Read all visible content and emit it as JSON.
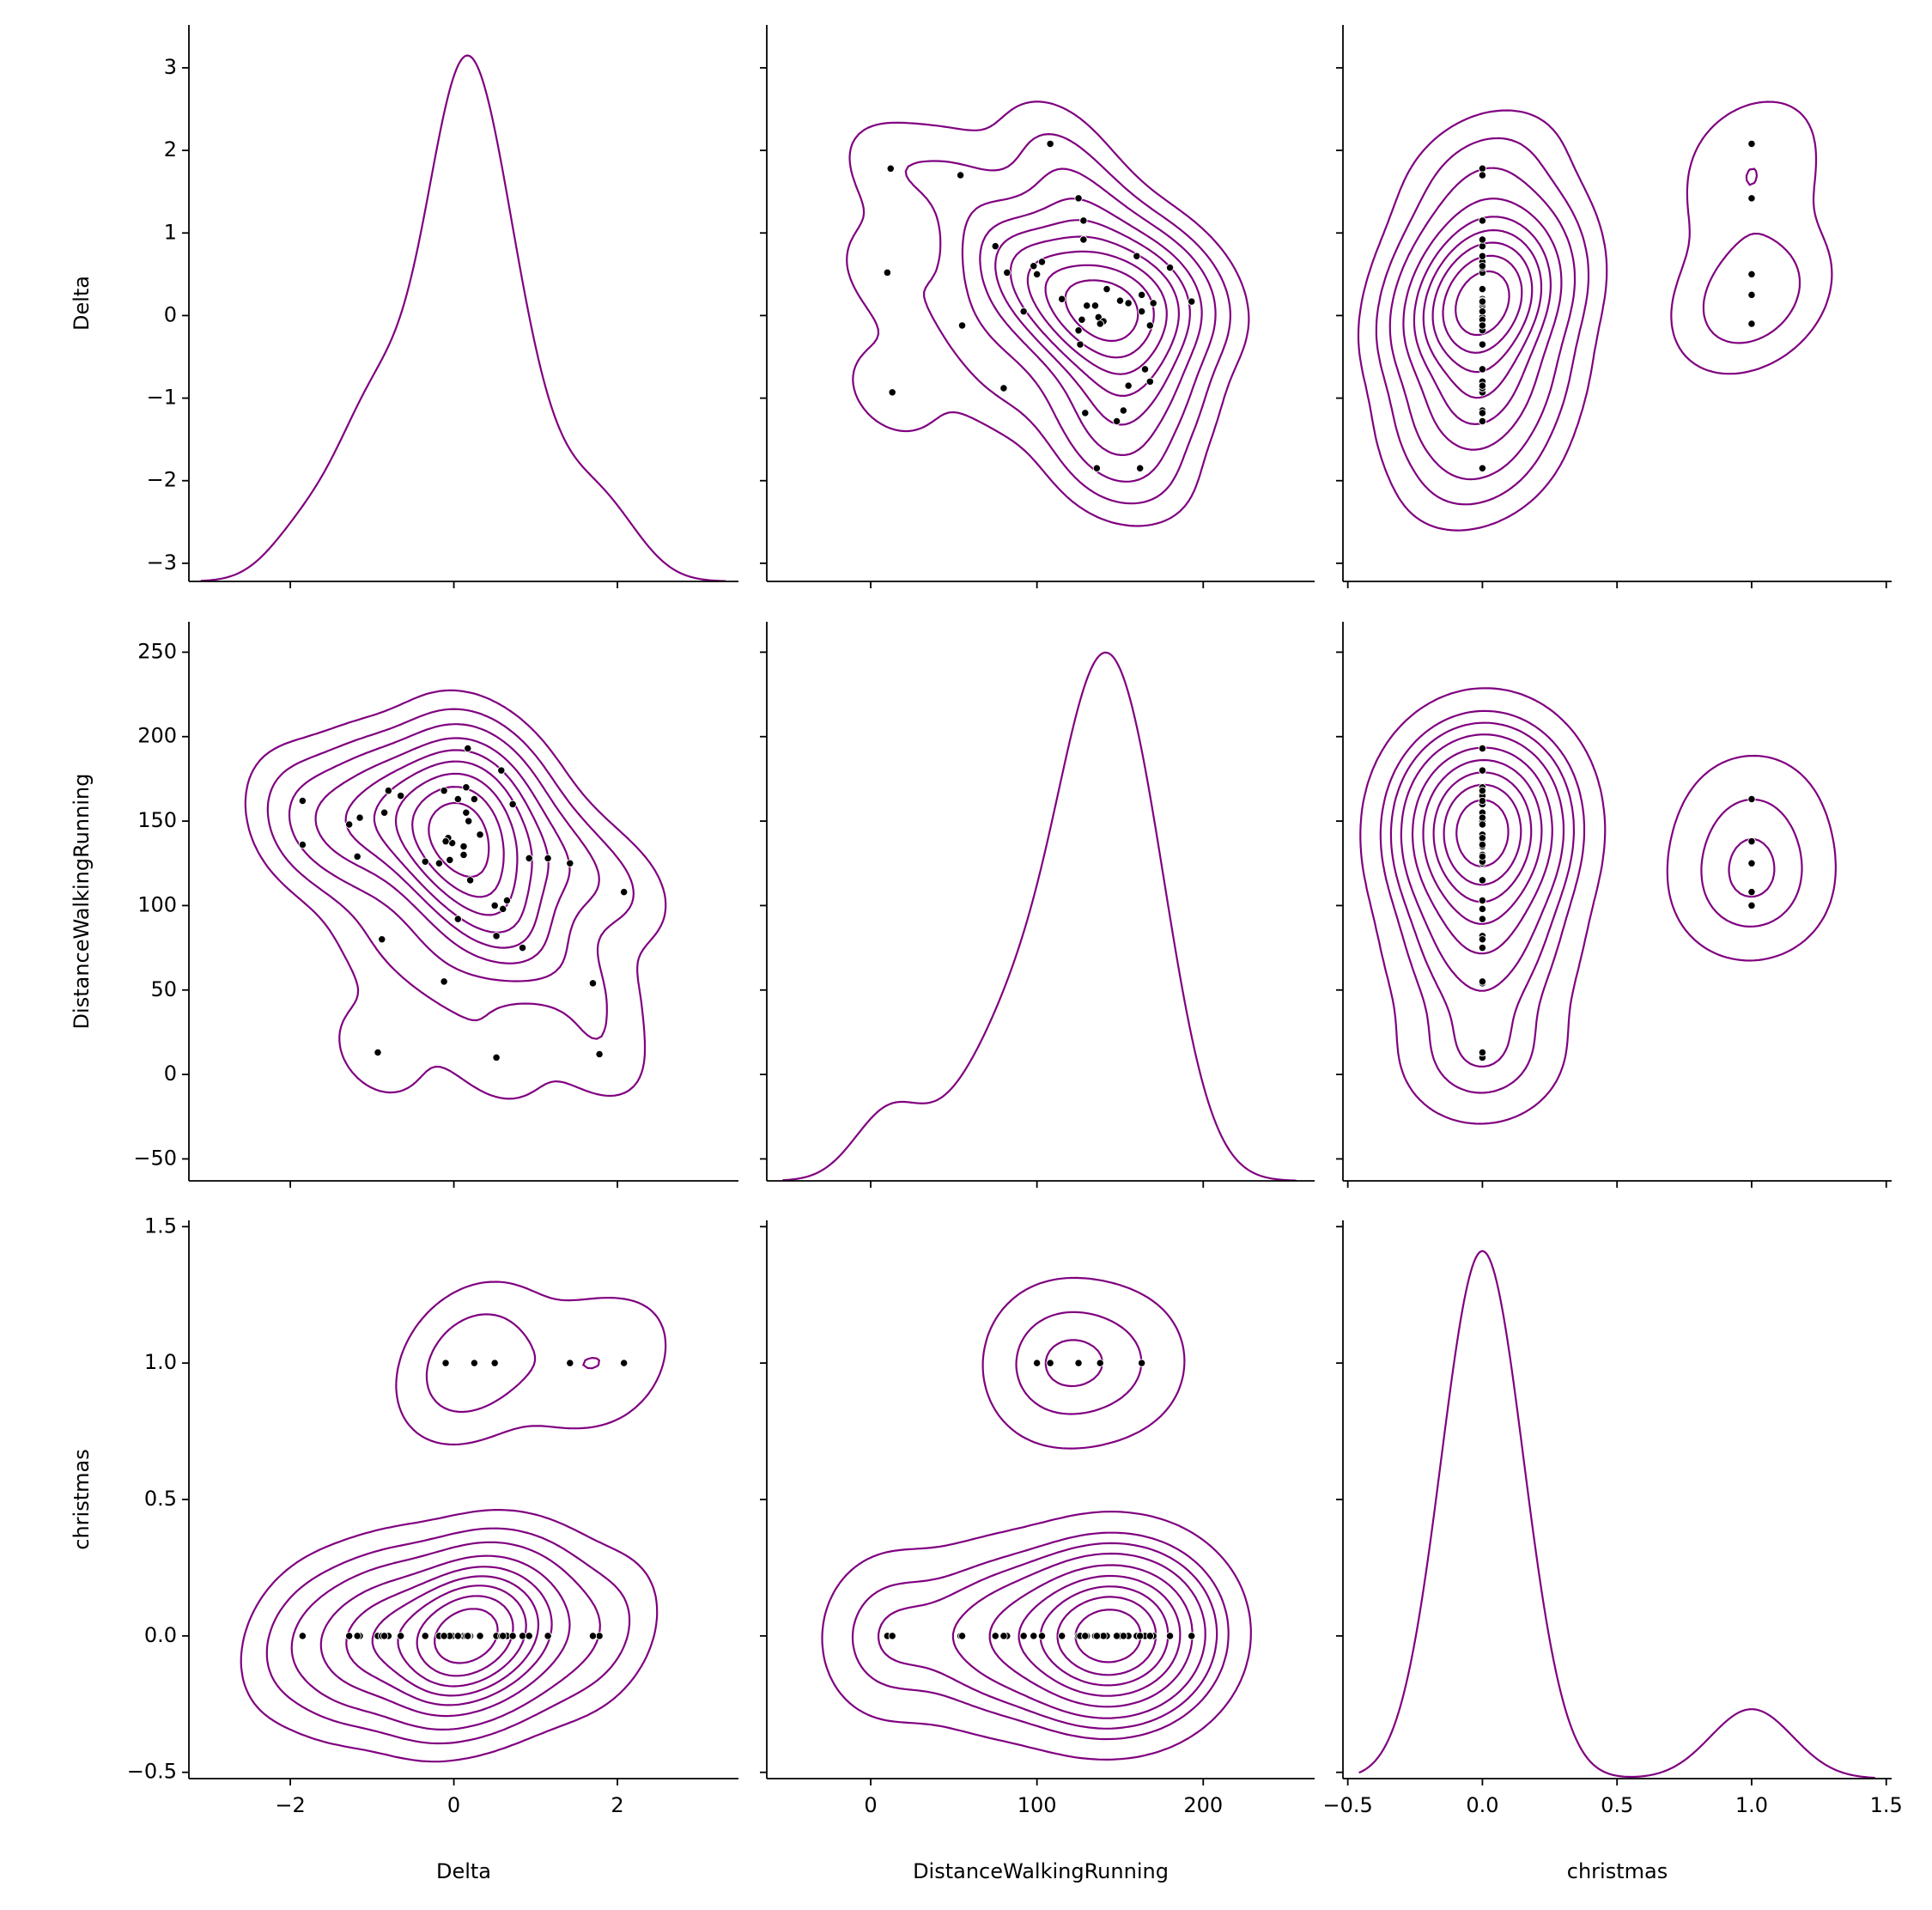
{
  "chart_data": {
    "type": "pairplot",
    "line_color": "#800080",
    "point_color": "#000000",
    "variables": [
      {
        "name": "Delta",
        "xlim": [
          -3.24,
          3.48
        ],
        "ylim": [
          -3.22,
          3.52
        ],
        "xticks": [
          {
            "value": -2,
            "label": "−2"
          },
          0,
          2
        ],
        "yticks": [
          {
            "value": -3,
            "label": "−3"
          },
          {
            "value": -2,
            "label": "−2"
          },
          {
            "value": -1,
            "label": "−1"
          },
          0,
          1,
          2,
          3
        ],
        "values": [
          1.78,
          0.52,
          -0.93,
          1.7,
          -0.12,
          2.08,
          1.42,
          0.84,
          0.52,
          0.5,
          0.05,
          -0.88,
          0.65,
          1.15,
          0.2,
          0.92,
          0.12,
          0.12,
          -0.02,
          0.32,
          -0.07,
          -0.05,
          -0.18,
          -0.35,
          0.18,
          0.15,
          0.72,
          0.25,
          0.05,
          0.15,
          -0.12,
          0.58,
          0.17,
          -0.65,
          -0.8,
          -0.85,
          -1.15,
          -1.28,
          -1.18,
          -1.85,
          -1.85,
          -0.1,
          0.6
        ]
      },
      {
        "name": "DistanceWalkingRunning",
        "xlim": [
          -62.5,
          267
        ],
        "ylim": [
          -63,
          268
        ],
        "xticks": [
          0,
          100,
          200
        ],
        "yticks": [
          {
            "value": -50,
            "label": "−50"
          },
          0,
          50,
          100,
          150,
          200,
          250
        ],
        "values": [
          12,
          10,
          13,
          54,
          55,
          108,
          125,
          75,
          82,
          100,
          92,
          80,
          103,
          128,
          115,
          128,
          130,
          135,
          137,
          142,
          140,
          127,
          125,
          126,
          150,
          155,
          160,
          163,
          163,
          170,
          168,
          180,
          193,
          165,
          168,
          155,
          152,
          148,
          129,
          136,
          162,
          138,
          98
        ]
      },
      {
        "name": "christmas",
        "xlim": [
          -0.518,
          1.52
        ],
        "ylim": [
          -0.523,
          1.523
        ],
        "xticks": [
          {
            "value": -0.5,
            "label": "−0.5"
          },
          {
            "value": 0,
            "label": "0.0"
          },
          0.5,
          {
            "value": 1,
            "label": "1.0"
          },
          1.5
        ],
        "yticks": [
          {
            "value": -0.5,
            "label": "−0.5"
          },
          {
            "value": 0,
            "label": "0.0"
          },
          0.5,
          {
            "value": 1,
            "label": "1.0"
          },
          1.5
        ],
        "values": [
          0,
          0,
          0,
          0,
          0,
          1,
          1,
          0,
          0,
          1,
          0,
          0,
          0,
          0,
          0,
          0,
          0,
          0,
          0,
          0,
          0,
          0,
          0,
          0,
          0,
          0,
          0,
          1,
          0,
          0,
          0,
          0,
          0,
          0,
          0,
          0,
          0,
          0,
          0,
          0,
          0,
          1,
          0
        ]
      }
    ]
  }
}
